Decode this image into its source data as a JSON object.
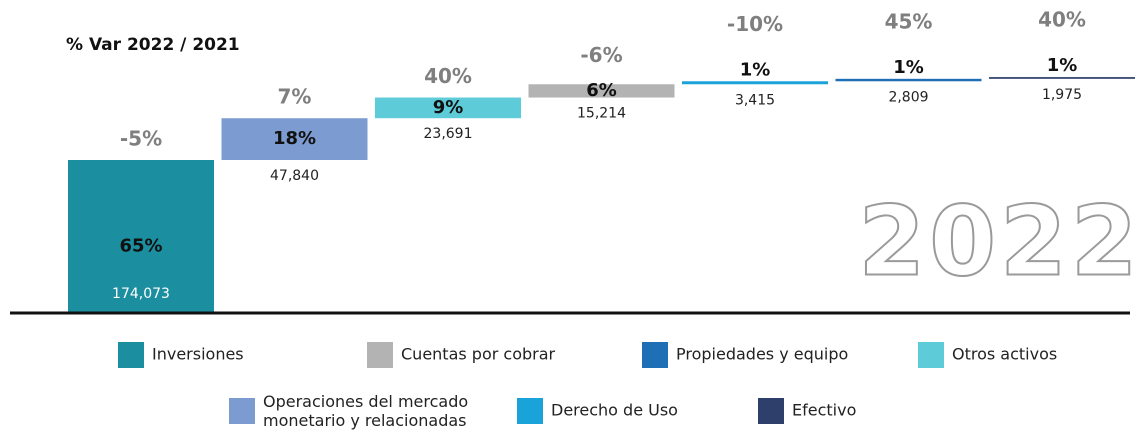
{
  "chart_data": {
    "type": "waterfall",
    "title": "% Var 2022 / 2021",
    "watermark": "2022",
    "series": [
      {
        "name": "Inversiones",
        "color": "#1b8fa0",
        "value": 174073,
        "value_label": "174,073",
        "share": 65,
        "share_label": "65%",
        "change": -5,
        "change_label": "-5%"
      },
      {
        "name": "Operaciones del mercado monetario y relacionadas",
        "color": "#7b9bd1",
        "value": 47840,
        "value_label": "47,840",
        "share": 18,
        "share_label": "18%",
        "change": 7,
        "change_label": "7%"
      },
      {
        "name": "Otros activos",
        "color": "#5ecbd8",
        "value": 23691,
        "value_label": "23,691",
        "share": 9,
        "share_label": "9%",
        "change": 40,
        "change_label": "40%"
      },
      {
        "name": "Cuentas por cobrar",
        "color": "#b3b3b3",
        "value": 15214,
        "value_label": "15,214",
        "share": 6,
        "share_label": "6%",
        "change": -6,
        "change_label": "-6%"
      },
      {
        "name": "Derecho de Uso",
        "color": "#1aa3d9",
        "value": 3415,
        "value_label": "3,415",
        "share": 1,
        "share_label": "1%",
        "change": -10,
        "change_label": "-10%"
      },
      {
        "name": "Propiedades y equipo",
        "color": "#1e6fb5",
        "value": 2809,
        "value_label": "2,809",
        "share": 1,
        "share_label": "1%",
        "change": 45,
        "change_label": "45%"
      },
      {
        "name": "Efectivo",
        "color": "#2e3f6b",
        "value": 1975,
        "value_label": "1,975",
        "share": 1,
        "share_label": "1%",
        "change": 40,
        "change_label": "40%"
      }
    ]
  }
}
